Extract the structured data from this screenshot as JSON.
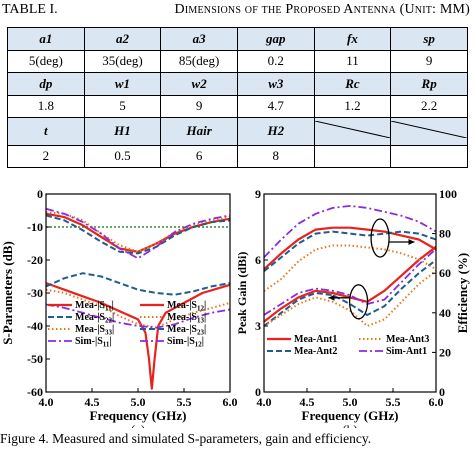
{
  "table": {
    "caption_label": "TABLE I.",
    "caption_title": "Dimensions of the Proposed Antenna (Unit: MM)",
    "rows": [
      {
        "headers": [
          "a1",
          "a2",
          "a3",
          "gap",
          "fx",
          "sp"
        ],
        "values": [
          "5(deg)",
          "35(deg)",
          "85(deg)",
          "0.2",
          "11",
          "9"
        ]
      },
      {
        "headers": [
          "dp",
          "w1",
          "w2",
          "w3",
          "Rc",
          "Rp"
        ],
        "values": [
          "1.8",
          "5",
          "9",
          "4.7",
          "1.2",
          "2.2"
        ]
      },
      {
        "headers": [
          "t",
          "H1",
          "Hair",
          "H2",
          "",
          ""
        ],
        "values": [
          "2",
          "0.5",
          "6",
          "8",
          "",
          ""
        ]
      }
    ]
  },
  "figure_caption": "Figure 4.    Measured and simulated S-parameters, gain and efficiency.",
  "chart_data": [
    {
      "type": "line",
      "panel_label": "(a)",
      "xlabel": "Frequency (GHz)",
      "ylabel": "S-Parameters (dB)",
      "xlim": [
        4.0,
        6.0
      ],
      "ylim": [
        -60,
        0
      ],
      "xticks": [
        "4.0",
        "4.5",
        "5.0",
        "5.5",
        "6.0"
      ],
      "yticks": [
        "-60",
        "-50",
        "-40",
        "-30",
        "-20",
        "-10",
        "0"
      ],
      "reference_line": {
        "y": -10,
        "color": "#2e8b2e",
        "style": "dotted"
      },
      "series": [
        {
          "name": "Mea-|S11|",
          "legend_label": "Mea-|S",
          "legend_sub": "11",
          "color": "#e8221c",
          "dash": "",
          "width": 2.2,
          "x": [
            4.0,
            4.2,
            4.4,
            4.6,
            4.8,
            5.0,
            5.2,
            5.4,
            5.6,
            5.8,
            6.0
          ],
          "y": [
            -6,
            -7,
            -9.5,
            -13,
            -16.5,
            -17.5,
            -15,
            -12,
            -10,
            -8.5,
            -7.5
          ]
        },
        {
          "name": "Mea-|S22|",
          "legend_label": "Mea-|S",
          "legend_sub": "22",
          "color": "#1f5d8c",
          "dash": "6,3",
          "width": 2,
          "x": [
            4.0,
            4.2,
            4.4,
            4.6,
            4.8,
            5.0,
            5.2,
            5.4,
            5.6,
            5.8,
            6.0
          ],
          "y": [
            -6.5,
            -8,
            -11,
            -14.5,
            -17.5,
            -18,
            -16,
            -12.5,
            -10,
            -8.5,
            -8
          ]
        },
        {
          "name": "Mea-|S33|",
          "legend_label": "Mea-|S",
          "legend_sub": "33",
          "color": "#e8781c",
          "dash": "1.5,2.5",
          "width": 2,
          "x": [
            4.0,
            4.2,
            4.4,
            4.6,
            4.8,
            5.0,
            5.2,
            5.4,
            5.6,
            5.8,
            6.0
          ],
          "y": [
            -5.5,
            -6,
            -8,
            -12,
            -15.5,
            -17.5,
            -15,
            -11.5,
            -9.5,
            -8,
            -7
          ]
        },
        {
          "name": "Sim-|S11|",
          "legend_label": "Sim-|S",
          "legend_sub": "11",
          "color": "#8a2be2",
          "dash": "8,3,2,3",
          "width": 1.8,
          "x": [
            4.0,
            4.2,
            4.4,
            4.6,
            4.8,
            5.0,
            5.2,
            5.4,
            5.6,
            5.8,
            6.0
          ],
          "y": [
            -4.5,
            -6,
            -8.5,
            -12,
            -16.5,
            -19.5,
            -16,
            -11.5,
            -9,
            -7.5,
            -6.5
          ]
        },
        {
          "name": "Mea-|S12|",
          "legend_label": "Mea-|S",
          "legend_sub": "12",
          "color": "#e8221c",
          "dash": "",
          "width": 2.2,
          "x": [
            4.0,
            4.2,
            4.4,
            4.6,
            4.8,
            5.0,
            5.08,
            5.12,
            5.15,
            5.18,
            5.22,
            5.3,
            5.5,
            5.7,
            6.0
          ],
          "y": [
            -27,
            -29,
            -31,
            -33,
            -35.5,
            -38,
            -42,
            -50,
            -59,
            -50,
            -40,
            -36,
            -33,
            -30,
            -27.5
          ]
        },
        {
          "name": "Mea-|S13|",
          "legend_label": "Mea-|S",
          "legend_sub": "13",
          "color": "#e8781c",
          "dash": "1.5,2.5",
          "width": 2,
          "x": [
            4.0,
            4.2,
            4.4,
            4.6,
            4.8,
            5.0,
            5.2,
            5.4,
            5.6,
            5.8,
            6.0
          ],
          "y": [
            -29,
            -30,
            -32,
            -34,
            -37,
            -39.5,
            -40.5,
            -38,
            -36,
            -34.5,
            -33
          ]
        },
        {
          "name": "Mea-|S23|",
          "legend_label": "Mea-|S",
          "legend_sub": "23",
          "color": "#1f5d8c",
          "dash": "6,3",
          "width": 2,
          "x": [
            4.0,
            4.2,
            4.4,
            4.6,
            4.8,
            5.0,
            5.2,
            5.4,
            5.6,
            5.8,
            6.0
          ],
          "y": [
            -28,
            -25.5,
            -24,
            -25,
            -27,
            -29,
            -30,
            -30.5,
            -29.5,
            -28,
            -27
          ]
        },
        {
          "name": "Sim-|S12|",
          "legend_label": "Sim-|S",
          "legend_sub": "12",
          "color": "#8a2be2",
          "dash": "8,3,2,3",
          "width": 1.8,
          "x": [
            4.0,
            4.2,
            4.4,
            4.6,
            4.8,
            5.0,
            5.2,
            5.4,
            5.6,
            5.8,
            6.0
          ],
          "y": [
            -33.5,
            -34.5,
            -36,
            -37.5,
            -39,
            -40,
            -40.5,
            -39.5,
            -37.5,
            -36,
            -35
          ]
        }
      ],
      "legend_layout": [
        [
          "Mea-|S11|",
          "Mea-|S12|"
        ],
        [
          "Mea-|S22|",
          "Mea-|S13|"
        ],
        [
          "Mea-|S33|",
          "Mea-|S23|"
        ],
        [
          "Sim-|S11|",
          "Sim-|S12|"
        ]
      ]
    },
    {
      "type": "line",
      "panel_label": "(b)",
      "xlabel": "Frequency (GHz)",
      "ylabel": "Peak Gain (dBi)",
      "y2label": "Efficiency (%)",
      "xlim": [
        4.0,
        6.0
      ],
      "ylim": [
        0,
        9
      ],
      "y2lim": [
        0,
        100
      ],
      "xticks": [
        "4.0",
        "4.5",
        "5.0",
        "5.5",
        "6.0"
      ],
      "yticks": [
        "0",
        "3",
        "6",
        "9"
      ],
      "y2ticks": [
        "0",
        "20",
        "40",
        "60",
        "80",
        "100"
      ],
      "series": [
        {
          "name": "Mea-Ant1 gain",
          "axis": "left",
          "color": "#e8221c",
          "dash": "",
          "width": 2.2,
          "x": [
            4.0,
            4.2,
            4.4,
            4.6,
            4.8,
            5.0,
            5.2,
            5.4,
            5.6,
            5.8,
            6.0
          ],
          "y": [
            3.2,
            3.8,
            4.3,
            4.6,
            4.5,
            4.3,
            4.1,
            4.6,
            5.3,
            6.0,
            6.6
          ]
        },
        {
          "name": "Mea-Ant2 gain",
          "axis": "left",
          "color": "#1f5d8c",
          "dash": "6,3",
          "width": 2,
          "x": [
            4.0,
            4.2,
            4.4,
            4.6,
            4.8,
            5.0,
            5.2,
            5.4,
            5.6,
            5.8,
            6.0
          ],
          "y": [
            3.0,
            3.6,
            4.2,
            4.5,
            4.4,
            4.0,
            3.5,
            3.9,
            4.7,
            5.4,
            6.0
          ]
        },
        {
          "name": "Mea-Ant3 gain",
          "axis": "left",
          "color": "#e8781c",
          "dash": "1.5,2.5",
          "width": 2,
          "x": [
            4.0,
            4.2,
            4.4,
            4.6,
            4.8,
            5.0,
            5.2,
            5.4,
            5.6,
            5.8,
            6.0
          ],
          "y": [
            3.0,
            3.5,
            4.0,
            4.3,
            4.1,
            3.7,
            3.0,
            3.3,
            4.1,
            4.9,
            5.5
          ]
        },
        {
          "name": "Sim-Ant1 gain",
          "axis": "left",
          "color": "#8a2be2",
          "dash": "8,3,2,3",
          "width": 1.8,
          "x": [
            4.0,
            4.2,
            4.4,
            4.6,
            4.8,
            5.0,
            5.2,
            5.4,
            5.6,
            5.8,
            6.0
          ],
          "y": [
            3.5,
            4.0,
            4.5,
            4.7,
            4.6,
            4.4,
            4.0,
            4.2,
            5.0,
            5.8,
            6.5
          ]
        },
        {
          "name": "Mea-Ant1 efficiency",
          "axis": "right",
          "color": "#e8221c",
          "dash": "",
          "width": 2.2,
          "x": [
            4.0,
            4.2,
            4.4,
            4.6,
            4.8,
            5.0,
            5.2,
            5.4,
            5.6,
            5.8,
            6.0
          ],
          "y": [
            62,
            70,
            77,
            82,
            83,
            83,
            82,
            81,
            79,
            77,
            72
          ]
        },
        {
          "name": "Mea-Ant2 efficiency",
          "axis": "right",
          "color": "#1f5d8c",
          "dash": "6,3",
          "width": 2,
          "x": [
            4.0,
            4.2,
            4.4,
            4.6,
            4.8,
            5.0,
            5.2,
            5.4,
            5.6,
            5.8,
            6.0
          ],
          "y": [
            61,
            68,
            75,
            80,
            81,
            80,
            79,
            80,
            81,
            80,
            77
          ]
        },
        {
          "name": "Mea-Ant3 efficiency",
          "axis": "right",
          "color": "#e8781c",
          "dash": "1.5,2.5",
          "width": 2,
          "x": [
            4.0,
            4.2,
            4.4,
            4.6,
            4.8,
            5.0,
            5.2,
            5.4,
            5.6,
            5.8,
            6.0
          ],
          "y": [
            51,
            57,
            66,
            72,
            74,
            74,
            73,
            72,
            70,
            67,
            62
          ]
        },
        {
          "name": "Sim-Ant1 efficiency",
          "axis": "right",
          "color": "#8a2be2",
          "dash": "8,3,2,3",
          "width": 1.8,
          "x": [
            4.0,
            4.2,
            4.4,
            4.6,
            4.8,
            5.0,
            5.2,
            5.4,
            5.6,
            5.8,
            6.0
          ],
          "y": [
            68,
            77,
            85,
            90,
            93,
            94,
            93,
            91,
            89,
            86,
            81
          ]
        }
      ],
      "legend": [
        {
          "label": "Mea-Ant1",
          "color": "#e8221c",
          "dash": "",
          "width": 2.2
        },
        {
          "label": "Mea-Ant3",
          "color": "#e8781c",
          "dash": "1.5,2.5",
          "width": 2
        },
        {
          "label": "Mea-Ant2",
          "color": "#1f5d8c",
          "dash": "6,3",
          "width": 2
        },
        {
          "label": "Sim-Ant1",
          "color": "#8a2be2",
          "dash": "8,3,2,3",
          "width": 1.8
        }
      ],
      "annotations": [
        {
          "kind": "ellipse-arrow",
          "cx": 5.35,
          "cy": 7.0,
          "arrow_to_x": 5.75,
          "axis_hint": "right"
        },
        {
          "kind": "ellipse-arrow",
          "cx": 5.1,
          "cy": 4.1,
          "arrow_to_x": 4.75,
          "axis_hint": "left"
        }
      ]
    }
  ]
}
